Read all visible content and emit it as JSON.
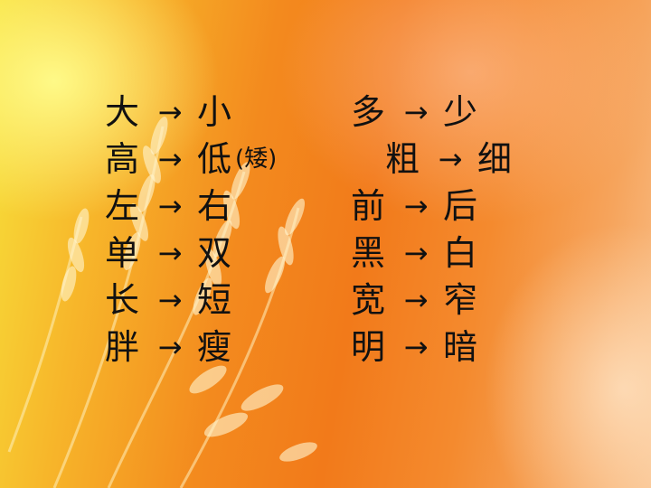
{
  "left_column": [
    {
      "from": "大",
      "to": "小",
      "note": ""
    },
    {
      "from": "高",
      "to": "低",
      "note": "(矮)"
    },
    {
      "from": "左",
      "to": "右",
      "note": ""
    },
    {
      "from": "单",
      "to": "双",
      "note": ""
    },
    {
      "from": "长",
      "to": "短",
      "note": ""
    },
    {
      "from": "胖",
      "to": "瘦",
      "note": ""
    }
  ],
  "right_column": [
    {
      "from": "多",
      "to": "少"
    },
    {
      "from": "粗",
      "to": "细"
    },
    {
      "from": "前",
      "to": "后"
    },
    {
      "from": "黑",
      "to": "白"
    },
    {
      "from": "宽",
      "to": "窄"
    },
    {
      "from": "明",
      "to": "暗"
    }
  ],
  "arrow_glyph": "→",
  "colors": {
    "text": "#111111",
    "background_warm": "#f27a1a",
    "background_light": "#f7e03a"
  },
  "background_icon": "wheat-stalks-icon"
}
